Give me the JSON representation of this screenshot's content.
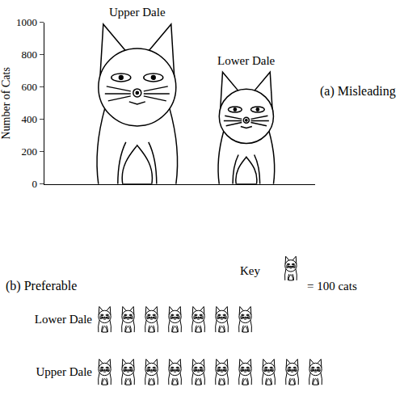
{
  "chart_data": [
    {
      "type": "scaled_icon",
      "annotation": "(a) Misleading",
      "categories": [
        "Upper Dale",
        "Lower Dale"
      ],
      "values": [
        1000,
        700
      ],
      "ylabel": "Number of Cats",
      "ylim": [
        0,
        1000
      ],
      "yticks": [
        0,
        200,
        400,
        600,
        800,
        1000
      ],
      "tick_labels": "y"
    },
    {
      "type": "pictogram",
      "annotation": "(b) Preferable",
      "categories": [
        "Lower Dale",
        "Upper Dale"
      ],
      "values": [
        700,
        1000
      ],
      "key": {
        "title": "Key",
        "value": 100,
        "label": "= 100 cats"
      }
    }
  ]
}
